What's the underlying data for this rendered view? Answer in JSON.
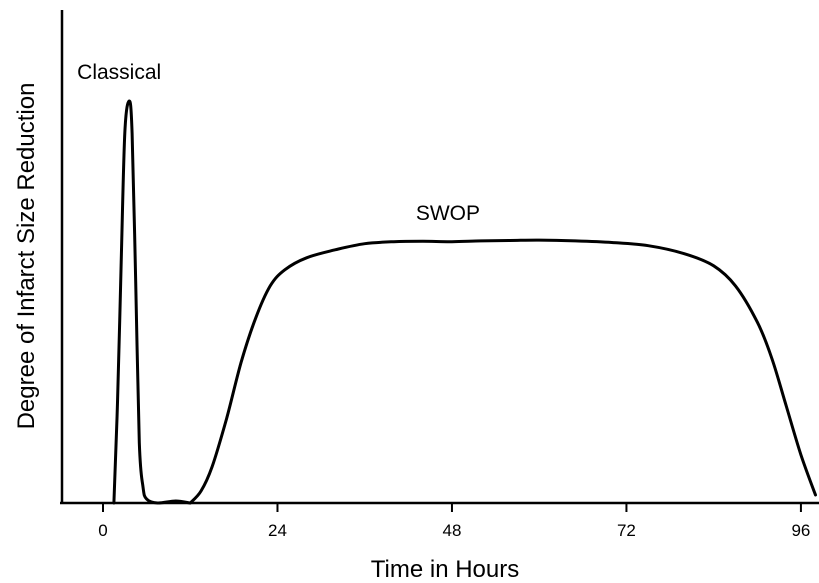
{
  "chart_data": {
    "type": "line",
    "title": "",
    "xlabel": "Time in Hours",
    "ylabel": "Degree of Infarct Size Reduction",
    "xticks": [
      "0",
      "24",
      "48",
      "72",
      "96"
    ],
    "xlim": [
      -5,
      100
    ],
    "ylim": [
      0,
      1
    ],
    "grid": false,
    "legend": "none",
    "series": [
      {
        "name": "Classical",
        "points": [
          [
            1.5,
            0.0
          ],
          [
            2.0,
            0.25
          ],
          [
            2.5,
            0.6
          ],
          [
            3.0,
            0.92
          ],
          [
            3.6,
            1.0
          ],
          [
            4.0,
            0.92
          ],
          [
            4.5,
            0.55
          ],
          [
            5.0,
            0.15
          ],
          [
            5.5,
            0.04
          ],
          [
            6.0,
            0.01
          ],
          [
            7.5,
            0.0
          ],
          [
            10.0,
            0.005
          ],
          [
            12.0,
            0.0
          ]
        ]
      },
      {
        "name": "SWOP",
        "points": [
          [
            12.0,
            0.0
          ],
          [
            13.5,
            0.03
          ],
          [
            15.0,
            0.09
          ],
          [
            17.0,
            0.21
          ],
          [
            19.0,
            0.35
          ],
          [
            21.0,
            0.46
          ],
          [
            23.0,
            0.54
          ],
          [
            25.0,
            0.58
          ],
          [
            28.0,
            0.61
          ],
          [
            32.0,
            0.63
          ],
          [
            36.0,
            0.645
          ],
          [
            40.0,
            0.65
          ],
          [
            44.0,
            0.651
          ],
          [
            48.0,
            0.65
          ],
          [
            52.0,
            0.652
          ],
          [
            56.0,
            0.653
          ],
          [
            60.0,
            0.654
          ],
          [
            65.0,
            0.652
          ],
          [
            70.0,
            0.648
          ],
          [
            75.0,
            0.64
          ],
          [
            80.0,
            0.62
          ],
          [
            84.0,
            0.59
          ],
          [
            87.0,
            0.54
          ],
          [
            90.0,
            0.45
          ],
          [
            92.0,
            0.36
          ],
          [
            94.0,
            0.24
          ],
          [
            96.0,
            0.12
          ],
          [
            98.0,
            0.02
          ]
        ]
      }
    ]
  }
}
